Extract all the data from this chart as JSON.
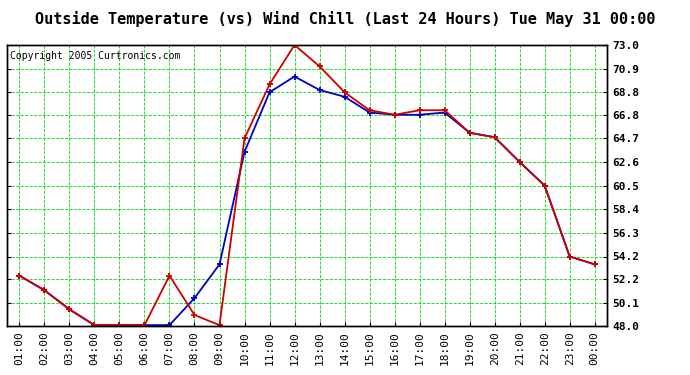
{
  "title": "Outside Temperature (vs) Wind Chill (Last 24 Hours) Tue May 31 00:00",
  "copyright": "Copyright 2005 Curtronics.com",
  "x_labels": [
    "01:00",
    "02:00",
    "03:00",
    "04:00",
    "05:00",
    "06:00",
    "07:00",
    "08:00",
    "09:00",
    "10:00",
    "11:00",
    "12:00",
    "13:00",
    "14:00",
    "15:00",
    "16:00",
    "17:00",
    "18:00",
    "19:00",
    "20:00",
    "21:00",
    "22:00",
    "23:00",
    "00:00"
  ],
  "ylim": [
    48.0,
    73.0
  ],
  "yticks": [
    48.0,
    50.1,
    52.2,
    54.2,
    56.3,
    58.4,
    60.5,
    62.6,
    64.7,
    66.8,
    68.8,
    70.9,
    73.0
  ],
  "outside_temp": [
    52.5,
    51.2,
    49.5,
    48.1,
    48.1,
    48.1,
    48.1,
    50.5,
    53.5,
    63.5,
    68.8,
    70.2,
    69.0,
    68.4,
    67.0,
    66.8,
    66.8,
    67.0,
    65.2,
    64.8,
    62.6,
    60.5,
    54.2,
    53.5
  ],
  "wind_chill": [
    52.5,
    51.2,
    49.5,
    48.1,
    48.1,
    48.1,
    52.5,
    49.0,
    48.1,
    64.7,
    69.5,
    73.0,
    71.1,
    68.8,
    67.2,
    66.8,
    67.2,
    67.2,
    65.2,
    64.8,
    62.6,
    60.5,
    54.2,
    53.5
  ],
  "outside_color": "#0000cc",
  "wind_chill_color": "#cc0000",
  "bg_color": "#ffffff",
  "plot_bg": "#ffffff",
  "grid_color": "#00dd00",
  "title_fontsize": 11,
  "tick_fontsize": 8,
  "copyright_fontsize": 7
}
